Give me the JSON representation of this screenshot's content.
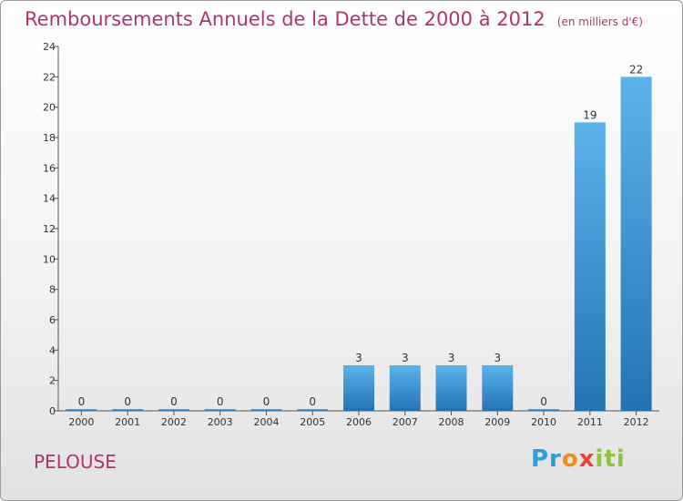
{
  "title": "Remboursements Annuels de la Dette de 2000 à 2012",
  "unit": "(en milliers d'€)",
  "commune": "PELOUSE",
  "logo": {
    "text": "Proxiti",
    "p1": "Pr",
    "p2": "o",
    "p3": "x",
    "p4": "iti"
  },
  "colors": {
    "title": "#b0346f",
    "bar_top": "#5cb3ea",
    "bar_bottom": "#2373b3"
  },
  "chart_data": {
    "type": "bar",
    "title": "Remboursements Annuels de la Dette de 2000 à 2012",
    "subtitle": "(en milliers d'€)",
    "xlabel": "",
    "ylabel": "",
    "categories": [
      "2000",
      "2001",
      "2002",
      "2003",
      "2004",
      "2005",
      "2006",
      "2007",
      "2008",
      "2009",
      "2010",
      "2011",
      "2012"
    ],
    "values": [
      0,
      0,
      0,
      0,
      0,
      0,
      3,
      3,
      3,
      3,
      0,
      19,
      22
    ],
    "ylim": [
      0,
      24
    ],
    "yticks": [
      0,
      2,
      4,
      6,
      8,
      10,
      12,
      14,
      16,
      18,
      20,
      22,
      24
    ],
    "grid": false,
    "data_labels": true
  }
}
